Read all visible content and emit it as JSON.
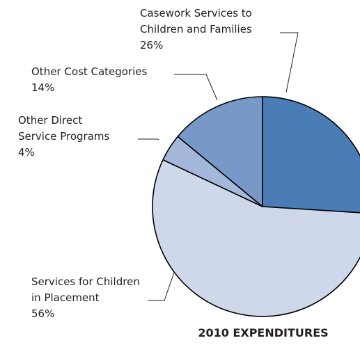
{
  "chart_data": {
    "type": "pie",
    "title": "2010 EXPENDITURES",
    "slices": [
      {
        "name": "Casework Services to Children and Families",
        "lines": [
          "Casework Services to",
          "Children and Families"
        ],
        "value": 26,
        "value_label": "26%",
        "color": "#4a7db5"
      },
      {
        "name": "Services for Children in Placement",
        "lines": [
          "Services for Children",
          "in Placement"
        ],
        "value": 56,
        "value_label": "56%",
        "color": "#cfd8ea"
      },
      {
        "name": "Other Direct Service Programs",
        "lines": [
          "Other Direct",
          "Service Programs"
        ],
        "value": 4,
        "value_label": "4%",
        "color": "#a4b8dc"
      },
      {
        "name": "Other Cost Categories",
        "lines": [
          "Other Cost Categories"
        ],
        "value": 14,
        "value_label": "14%",
        "color": "#7898c8"
      }
    ],
    "start_angle_deg": 0,
    "direction": "clockwise",
    "slice_outline_color": "#000000",
    "legend": "none"
  }
}
